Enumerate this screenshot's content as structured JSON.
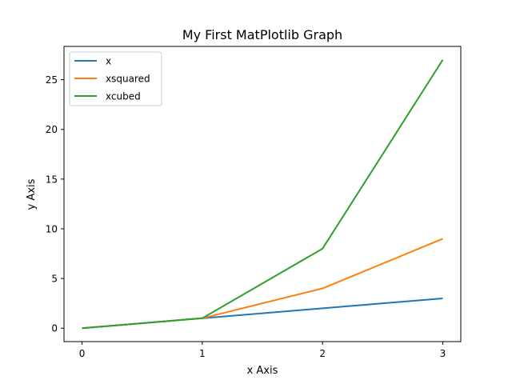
{
  "chart_data": {
    "type": "line",
    "title": "My First MatPlotlib Graph",
    "xlabel": "x Axis",
    "ylabel": "y Axis",
    "x": [
      0,
      1,
      2,
      3
    ],
    "series": [
      {
        "name": "x",
        "values": [
          0,
          1,
          2,
          3
        ],
        "color": "#1f77b4"
      },
      {
        "name": "xsquared",
        "values": [
          0,
          1,
          4,
          9
        ],
        "color": "#ff7f0e"
      },
      {
        "name": "xcubed",
        "values": [
          0,
          1,
          8,
          27
        ],
        "color": "#2ca02c"
      }
    ],
    "xlim": [
      -0.15,
      3.15
    ],
    "ylim": [
      -1.35,
      28.35
    ],
    "xticks": [
      0,
      1,
      2,
      3
    ],
    "yticks": [
      0,
      5,
      10,
      15,
      20,
      25
    ],
    "grid": false,
    "legend_position": "upper-left"
  }
}
